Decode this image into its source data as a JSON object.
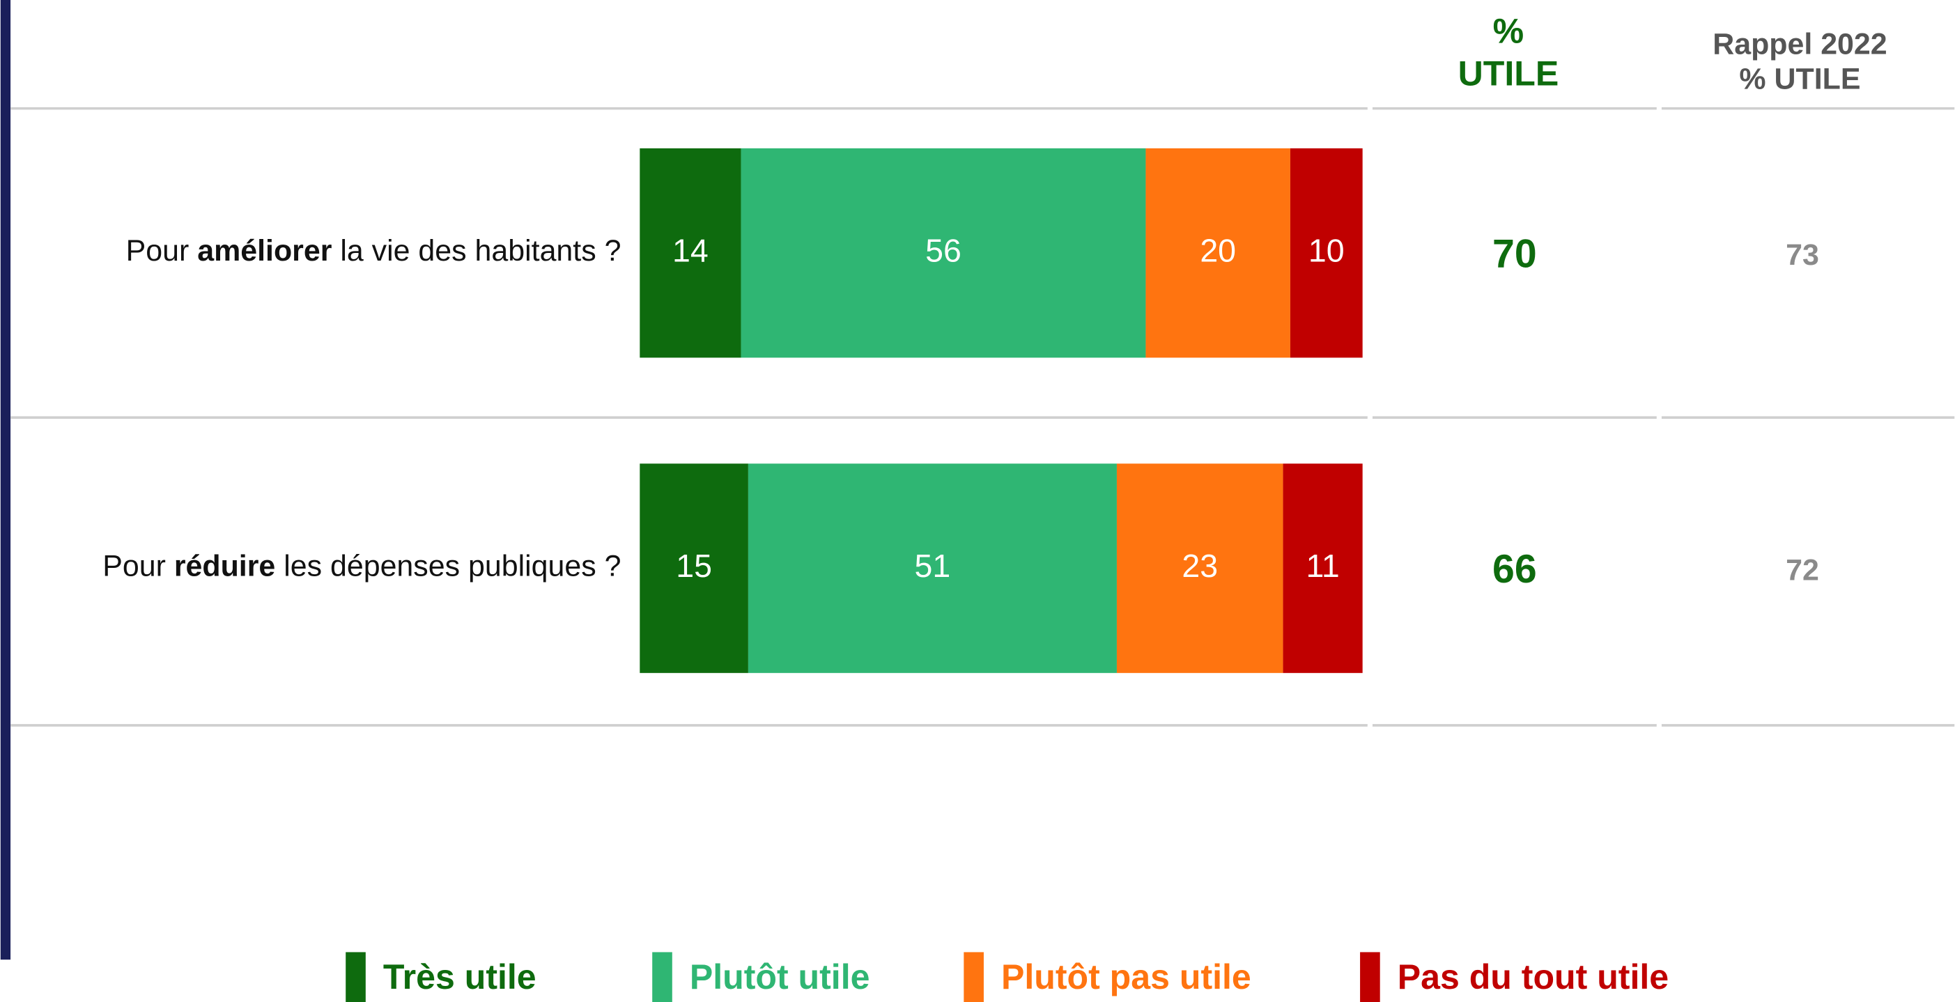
{
  "chart_data": {
    "type": "stacked_barh",
    "category_parts": [
      [
        "Pour ",
        "améliorer",
        " la vie des habitants ?"
      ],
      [
        "Pour ",
        "réduire",
        " les dépenses publiques ?"
      ]
    ],
    "series": [
      {
        "name": "Très utile",
        "color": "#0e6b0e",
        "values": [
          14,
          15
        ]
      },
      {
        "name": "Plutôt utile",
        "color": "#2fb673",
        "values": [
          56,
          51
        ]
      },
      {
        "name": "Plutôt pas utile",
        "color": "#ff7410",
        "values": [
          20,
          23
        ]
      },
      {
        "name": "Pas du tout utile",
        "color": "#c00000",
        "values": [
          10,
          11
        ]
      }
    ],
    "xlim": [
      0,
      100
    ],
    "columns": [
      {
        "header": [
          "%",
          "UTILE"
        ],
        "color": "#0e6b0e",
        "values": [
          70,
          66
        ]
      },
      {
        "header": [
          "Rappel 2022",
          "% UTILE"
        ],
        "color": "#8a8a8a",
        "values": [
          73,
          72
        ]
      }
    ]
  }
}
